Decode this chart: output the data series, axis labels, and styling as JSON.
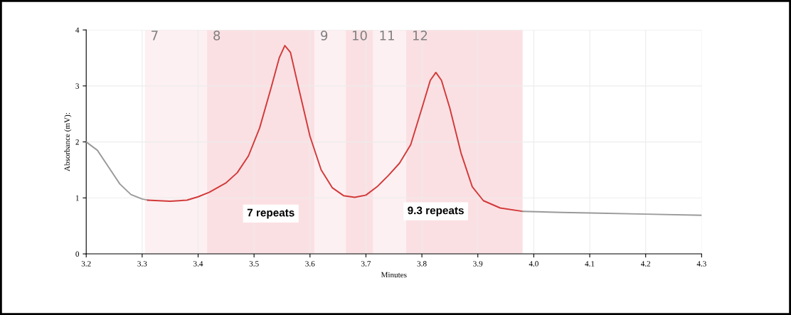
{
  "chart_data": {
    "type": "line",
    "xlabel": "Minutes",
    "ylabel": "Absorbance (mV):",
    "xlim": [
      3.2,
      4.3
    ],
    "xticks": [
      {
        "value": 3.2,
        "label": "3.2"
      },
      {
        "value": 3.3,
        "label": "3.3"
      },
      {
        "value": 3.4,
        "label": "3.4"
      },
      {
        "value": 3.5,
        "label": "3.5"
      },
      {
        "value": 3.6,
        "label": "3.6"
      },
      {
        "value": 3.7,
        "label": "3.7"
      },
      {
        "value": 3.8,
        "label": "3.8"
      },
      {
        "value": 3.9,
        "label": "3.9"
      },
      {
        "value": 4.0,
        "label": "4.0"
      },
      {
        "value": 4.1,
        "label": "4.1"
      },
      {
        "value": 4.2,
        "label": "4.2"
      },
      {
        "value": 4.3,
        "label": "4.3"
      }
    ],
    "ylim": [
      0,
      4
    ],
    "yticks": [
      0,
      1,
      2,
      3,
      4
    ],
    "grid": true,
    "legend": false,
    "series": [
      {
        "color": "#9a9a9a",
        "x": [
          3.2,
          3.22,
          3.24,
          3.26,
          3.28,
          3.3,
          3.31
        ],
        "values": [
          2.0,
          1.85,
          1.55,
          1.25,
          1.06,
          0.98,
          0.96
        ]
      },
      {
        "color": "#d23a3a",
        "x": [
          3.31,
          3.35,
          3.38,
          3.4,
          3.42,
          3.45,
          3.47,
          3.49,
          3.51,
          3.53,
          3.545,
          3.555,
          3.565,
          3.58,
          3.6,
          3.62,
          3.64,
          3.66,
          3.68,
          3.7,
          3.72,
          3.74,
          3.76,
          3.78,
          3.8,
          3.815,
          3.825,
          3.835,
          3.85,
          3.87,
          3.89,
          3.91,
          3.94,
          3.98
        ],
        "values": [
          0.96,
          0.94,
          0.96,
          1.02,
          1.1,
          1.27,
          1.45,
          1.75,
          2.25,
          2.95,
          3.5,
          3.72,
          3.6,
          2.95,
          2.1,
          1.5,
          1.18,
          1.04,
          1.01,
          1.05,
          1.2,
          1.4,
          1.62,
          1.95,
          2.6,
          3.1,
          3.24,
          3.1,
          2.6,
          1.8,
          1.2,
          0.95,
          0.82,
          0.76
        ]
      },
      {
        "color": "#9a9a9a",
        "x": [
          3.98,
          4.05,
          4.1,
          4.2,
          4.3
        ],
        "values": [
          0.76,
          0.74,
          0.73,
          0.71,
          0.69
        ]
      }
    ],
    "bands": [
      {
        "axis": "x",
        "from": 3.305,
        "to": 3.416,
        "label": "7",
        "color": "#fdf0f2"
      },
      {
        "axis": "x",
        "from": 3.416,
        "to": 3.608,
        "label": "8",
        "color": "#fbe0e3"
      },
      {
        "axis": "x",
        "from": 3.608,
        "to": 3.664,
        "label": "9",
        "color": "#fdf0f2"
      },
      {
        "axis": "x",
        "from": 3.664,
        "to": 3.713,
        "label": "10",
        "color": "#fbe0e3"
      },
      {
        "axis": "x",
        "from": 3.713,
        "to": 3.772,
        "label": "11",
        "color": "#fdf0f2"
      },
      {
        "axis": "x",
        "from": 3.772,
        "to": 3.98,
        "label": "12",
        "color": "#fbe0e3"
      }
    ],
    "annotations": [
      "7 repeats",
      "9.3 repeats"
    ]
  }
}
